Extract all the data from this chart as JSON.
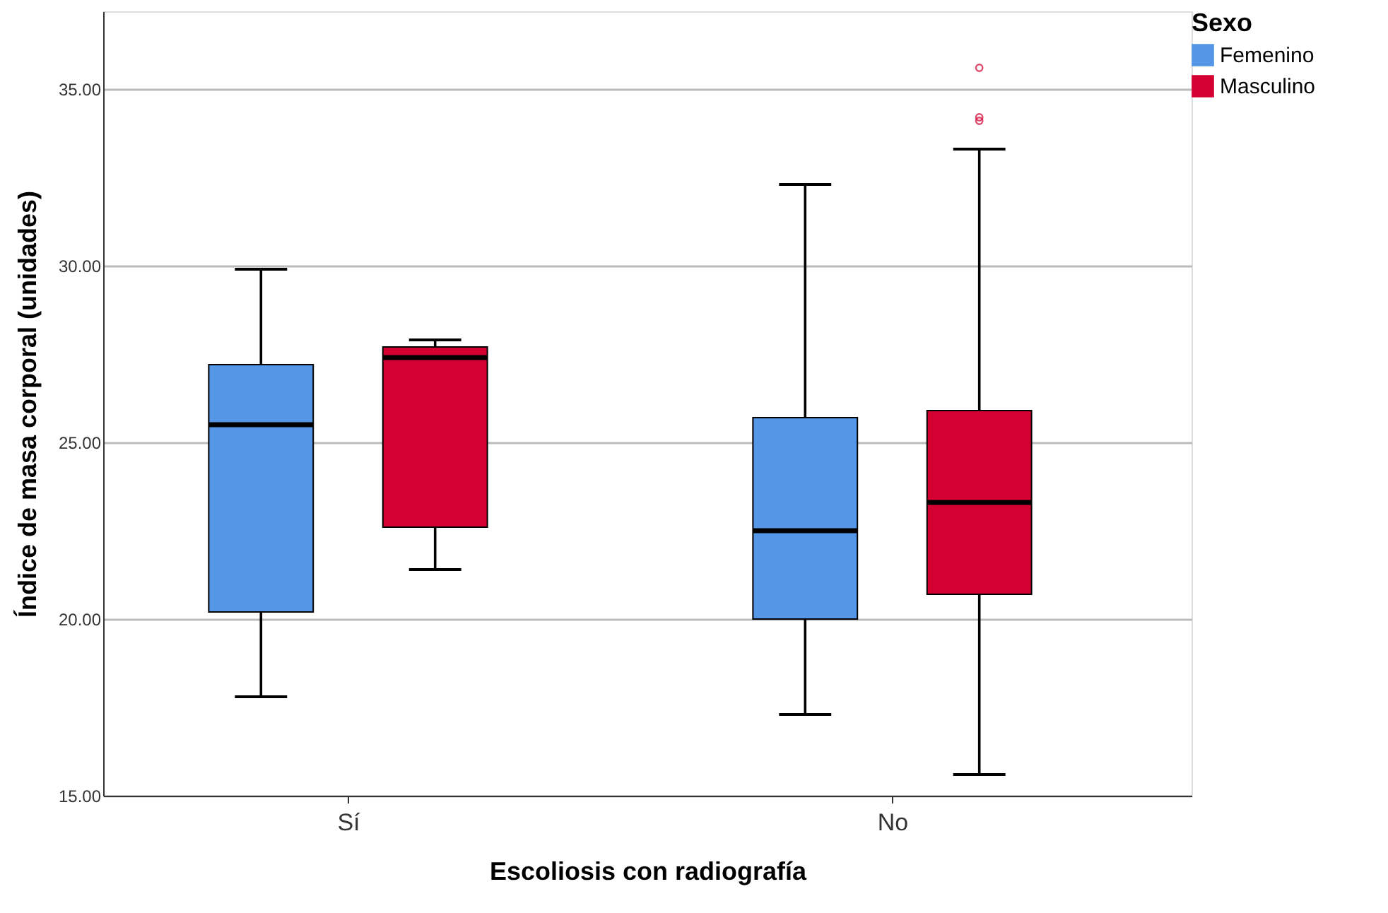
{
  "chart_data": {
    "type": "box",
    "xlabel": "Escoliosis con radiografía",
    "ylabel": "Índice de masa corporal (unidades)",
    "legend_title": "Sexo",
    "categories": [
      "Sí",
      "No"
    ],
    "series": [
      {
        "name": "Femenino",
        "color": "#5596e6",
        "boxes": [
          {
            "low": 17.8,
            "q1": 20.2,
            "median": 25.5,
            "q3": 27.2,
            "high": 29.9
          },
          {
            "low": 17.3,
            "q1": 20.0,
            "median": 22.5,
            "q3": 25.7,
            "high": 32.3
          }
        ]
      },
      {
        "name": "Masculino",
        "color": "#d50032",
        "boxes": [
          {
            "low": 21.4,
            "q1": 22.6,
            "median": 27.4,
            "q3": 27.7,
            "high": 27.9
          },
          {
            "low": 15.6,
            "q1": 20.7,
            "median": 23.3,
            "q3": 25.9,
            "high": 33.3,
            "outliers": [
              35.6,
              34.2,
              34.1
            ]
          }
        ]
      }
    ],
    "ylim": [
      15,
      37.2
    ],
    "yticks": [
      {
        "value": 15,
        "label": "15.00"
      },
      {
        "value": 20,
        "label": "20.00"
      },
      {
        "value": 25,
        "label": "25.00"
      },
      {
        "value": 30,
        "label": "30.00"
      },
      {
        "value": 35,
        "label": "35.00"
      }
    ],
    "grid": "y",
    "legend": "top right"
  }
}
